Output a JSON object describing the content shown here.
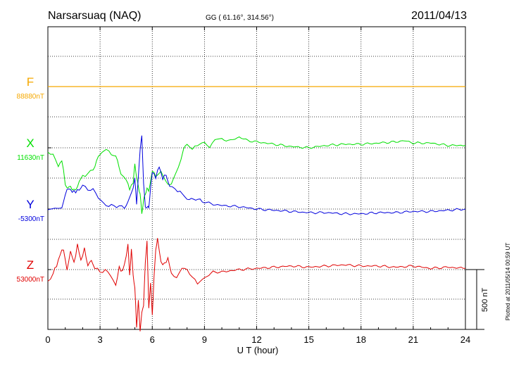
{
  "header": {
    "station": "Narsarsuaq (NAQ)",
    "coords": "GG ( 61.16°, 314.56°)",
    "date": "2011/04/13"
  },
  "plotted_note": "Plotted at 2011/05/14 00:59 UT",
  "scale_label": "500 nT",
  "chart_data": {
    "type": "line",
    "title": "Narsarsuaq (NAQ)",
    "xlabel": "U T (hour)",
    "ylabel": "",
    "xlim": [
      0,
      24
    ],
    "x_ticks": [
      "0",
      "3",
      "6",
      "9",
      "12",
      "15",
      "18",
      "21",
      "24"
    ],
    "grid": true,
    "scale_nT": 500,
    "series": [
      {
        "name": "F",
        "baseline": "88880nT",
        "color": "#f5a800",
        "offset_nT": 0,
        "x": [
          0,
          24
        ],
        "values": [
          0,
          0
        ]
      },
      {
        "name": "X",
        "baseline": "11630nT",
        "color": "#00e000",
        "offset_nT": 0,
        "x": [
          0,
          0.3,
          0.6,
          0.8,
          1.0,
          1.1,
          1.2,
          1.4,
          1.6,
          1.8,
          2.0,
          2.3,
          2.6,
          2.8,
          3.0,
          3.2,
          3.5,
          3.8,
          4.0,
          4.2,
          4.5,
          4.7,
          4.9,
          5.0,
          5.1,
          5.2,
          5.3,
          5.4,
          5.5,
          5.6,
          5.7,
          5.8,
          5.9,
          6.0,
          6.2,
          6.5,
          6.8,
          7.0,
          7.2,
          7.5,
          7.8,
          8.0,
          8.3,
          8.6,
          9.0,
          9.3,
          9.6,
          10.0,
          10.5,
          11.0,
          11.5,
          12.0,
          12.5,
          13.0,
          14.0,
          15.0,
          16.0,
          17.0,
          18.0,
          19.0,
          20.0,
          20.5,
          21.0,
          22.0,
          23.0,
          24.0
        ],
        "values": [
          -40,
          -60,
          -140,
          -110,
          -300,
          -330,
          -310,
          -360,
          -340,
          -290,
          -240,
          -210,
          -180,
          -110,
          -60,
          -10,
          -40,
          -60,
          -110,
          -210,
          -270,
          -330,
          -300,
          -150,
          -240,
          -310,
          -380,
          -560,
          -450,
          -380,
          -330,
          -350,
          -300,
          -200,
          -220,
          -210,
          -280,
          -330,
          -260,
          -170,
          0,
          20,
          -10,
          20,
          40,
          10,
          60,
          70,
          60,
          90,
          60,
          50,
          40,
          30,
          10,
          0,
          20,
          30,
          30,
          40,
          50,
          60,
          40,
          40,
          20,
          20
        ]
      },
      {
        "name": "Y",
        "baseline": "-5300nT",
        "color": "#0000dd",
        "offset_nT": 0,
        "x": [
          0,
          0.4,
          0.8,
          1.0,
          1.2,
          1.4,
          1.6,
          1.8,
          2.0,
          2.3,
          2.6,
          2.9,
          3.2,
          3.5,
          3.8,
          4.1,
          4.4,
          4.6,
          4.8,
          5.0,
          5.1,
          5.2,
          5.3,
          5.4,
          5.5,
          5.6,
          5.7,
          5.8,
          5.9,
          6.0,
          6.2,
          6.4,
          6.6,
          6.8,
          7.0,
          7.3,
          7.6,
          8.0,
          8.5,
          9.0,
          9.5,
          10.0,
          11.0,
          12.0,
          13.0,
          14.0,
          15.0,
          16.0,
          17.0,
          18.0,
          19.0,
          20.0,
          21.0,
          22.0,
          23.0,
          24.0
        ],
        "values": [
          -20,
          10,
          20,
          120,
          170,
          160,
          130,
          170,
          200,
          170,
          150,
          110,
          40,
          20,
          40,
          10,
          20,
          50,
          130,
          260,
          40,
          250,
          500,
          620,
          230,
          10,
          0,
          10,
          180,
          320,
          250,
          370,
          250,
          280,
          200,
          170,
          140,
          90,
          80,
          60,
          40,
          30,
          20,
          0,
          -10,
          -20,
          -30,
          -30,
          -40,
          -40,
          -30,
          -30,
          -20,
          -20,
          -10,
          0
        ]
      },
      {
        "name": "Z",
        "baseline": "53000nT",
        "color": "#e00000",
        "offset_nT": 0,
        "x": [
          0,
          0.3,
          0.5,
          0.7,
          0.9,
          1.1,
          1.3,
          1.5,
          1.7,
          1.9,
          2.1,
          2.3,
          2.5,
          2.7,
          3.0,
          3.3,
          3.6,
          3.9,
          4.1,
          4.3,
          4.5,
          4.6,
          4.7,
          4.8,
          4.9,
          5.0,
          5.1,
          5.2,
          5.3,
          5.4,
          5.5,
          5.6,
          5.7,
          5.8,
          5.9,
          6.0,
          6.1,
          6.2,
          6.3,
          6.5,
          6.7,
          6.9,
          7.1,
          7.4,
          7.7,
          8.0,
          8.3,
          8.6,
          9.0,
          9.5,
          10.0,
          11.0,
          12.0,
          13.0,
          14.0,
          15.0,
          16.0,
          17.0,
          18.0,
          19.0,
          20.0,
          21.0,
          22.0,
          23.0,
          24.0
        ],
        "values": [
          -90,
          -40,
          40,
          130,
          160,
          10,
          140,
          60,
          210,
          60,
          190,
          20,
          80,
          20,
          -30,
          0,
          -40,
          -150,
          30,
          -20,
          100,
          230,
          -40,
          170,
          -60,
          -160,
          -470,
          -250,
          -510,
          -380,
          -300,
          60,
          260,
          -330,
          -120,
          -390,
          -60,
          180,
          260,
          50,
          60,
          80,
          -30,
          -80,
          30,
          -20,
          -50,
          -120,
          -70,
          -20,
          -20,
          0,
          10,
          20,
          30,
          20,
          30,
          40,
          30,
          30,
          20,
          30,
          10,
          20,
          10
        ]
      }
    ]
  }
}
